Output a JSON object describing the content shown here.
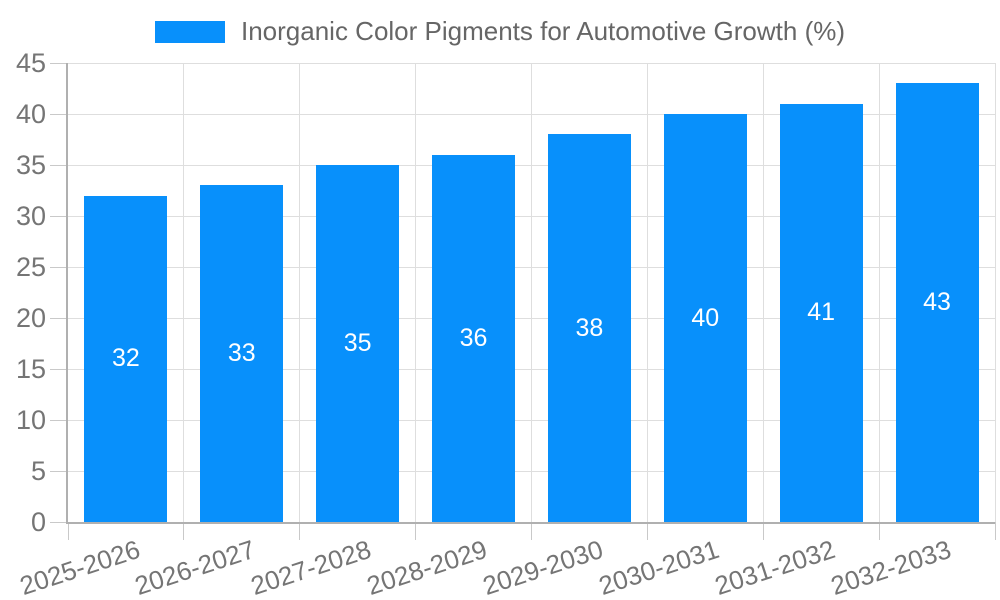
{
  "chart_data": {
    "type": "bar",
    "title": "",
    "legend": {
      "label": "Inorganic Color Pigments for Automotive Growth (%)",
      "position": "top-center"
    },
    "categories": [
      "2025-2026",
      "2026-2027",
      "2027-2028",
      "2028-2029",
      "2029-2030",
      "2030-2031",
      "2031-2032",
      "2032-2033"
    ],
    "values": [
      32,
      33,
      35,
      36,
      38,
      40,
      41,
      43
    ],
    "xlabel": "",
    "ylabel": "",
    "ylim": [
      0,
      45
    ],
    "ytick_step": 5,
    "yticks": [
      0,
      5,
      10,
      15,
      20,
      25,
      30,
      35,
      40,
      45
    ],
    "grid": true,
    "bar_labels": "value centered inside bar, white",
    "xtick_label_rotation_deg": -18
  },
  "colors": {
    "bar": "#0890fb",
    "bar_label_text": "#ffffff",
    "legend_text": "#666666",
    "tick_text": "#757575",
    "axis_line": "#b0b0b0",
    "grid_line": "#dedede",
    "tick_line": "#c9c9c9",
    "background": "#ffffff"
  }
}
